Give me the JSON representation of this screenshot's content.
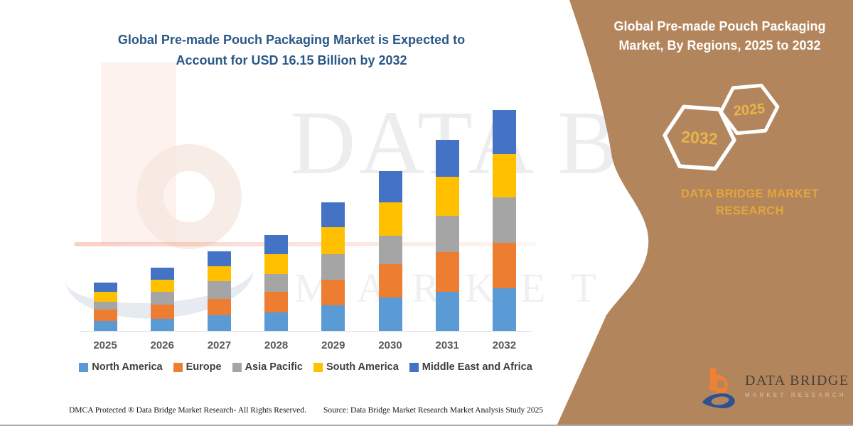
{
  "title": "Global Pre-made Pouch Packaging Market is Expected to Account for USD 16.15 Billion by 2032",
  "panel": {
    "heading": "Global Pre-made Pouch Packaging Market, By Regions, 2025 to 2032",
    "hexagons": [
      {
        "label": "2032"
      },
      {
        "label": "2025"
      }
    ],
    "brand_line1": "DATA BRIDGE MARKET",
    "brand_line2": "RESEARCH"
  },
  "logo": {
    "name": "DATA BRIDGE",
    "subtitle": "MARKET RESEARCH"
  },
  "watermark": {
    "line1": "DATA BRI",
    "line2": "MARKET RESEARCH"
  },
  "footer": {
    "copyright": "DMCA Protected ® Data Bridge Market Research- All Rights Reserved.",
    "source": "Source: Data Bridge Market Research Market Analysis Study 2025"
  },
  "colors": {
    "panel_brown": "#B3855C",
    "title_blue": "#2A5788",
    "gold": "#E2A63D",
    "axis_gray": "#D9D9D9",
    "label_gray": "#595959",
    "legend_text": "#3F3F3F"
  },
  "chart_data": {
    "type": "bar",
    "stacked": true,
    "title": "Global Pre-made Pouch Packaging Market is Expected to Account for USD 16.15 Billion by 2032",
    "unit": "USD billion",
    "categories": [
      "2025",
      "2026",
      "2027",
      "2028",
      "2029",
      "2030",
      "2031",
      "2032"
    ],
    "series": [
      {
        "name": "North America",
        "color": "#5B9BD5",
        "values": [
          0.75,
          0.87,
          1.13,
          1.36,
          1.85,
          2.43,
          2.87,
          3.14
        ]
      },
      {
        "name": "Europe",
        "color": "#ED7D31",
        "values": [
          0.78,
          1.05,
          1.22,
          1.48,
          1.9,
          2.44,
          2.87,
          3.31
        ]
      },
      {
        "name": "Asia Pacific",
        "color": "#A5A5A5",
        "values": [
          0.61,
          0.92,
          1.27,
          1.31,
          1.88,
          2.09,
          2.65,
          3.31
        ]
      },
      {
        "name": "South America",
        "color": "#FFC000",
        "values": [
          0.7,
          0.91,
          1.08,
          1.48,
          1.97,
          2.46,
          2.87,
          3.17
        ]
      },
      {
        "name": "Middle East and Africa",
        "color": "#4472C4",
        "values": [
          0.7,
          0.89,
          1.13,
          1.37,
          1.78,
          2.25,
          2.7,
          3.22
        ]
      }
    ],
    "totals": [
      3.54,
      4.64,
      5.83,
      7.0,
      9.38,
      11.67,
      13.96,
      16.15
    ],
    "ylim": [
      0,
      17
    ],
    "grid": false,
    "legend_position": "bottom",
    "xlabel": "",
    "ylabel": ""
  }
}
